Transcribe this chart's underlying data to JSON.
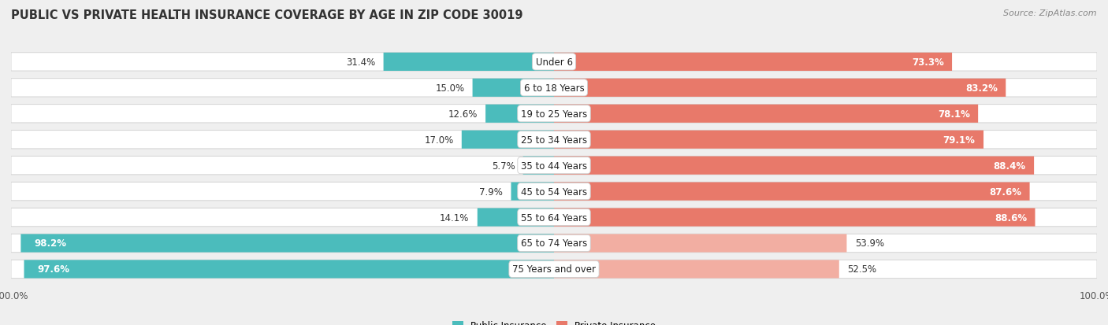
{
  "title": "PUBLIC VS PRIVATE HEALTH INSURANCE COVERAGE BY AGE IN ZIP CODE 30019",
  "source": "Source: ZipAtlas.com",
  "categories": [
    "Under 6",
    "6 to 18 Years",
    "19 to 25 Years",
    "25 to 34 Years",
    "35 to 44 Years",
    "45 to 54 Years",
    "55 to 64 Years",
    "65 to 74 Years",
    "75 Years and over"
  ],
  "public_values": [
    31.4,
    15.0,
    12.6,
    17.0,
    5.7,
    7.9,
    14.1,
    98.2,
    97.6
  ],
  "private_values": [
    73.3,
    83.2,
    78.1,
    79.1,
    88.4,
    87.6,
    88.6,
    53.9,
    52.5
  ],
  "public_color": "#4bbcbc",
  "private_color_high": "#e8796a",
  "private_color_low": "#f2aea2",
  "row_bg_color": "#ffffff",
  "row_border_color": "#d8d8d8",
  "background_color": "#efefef",
  "bar_height": 0.68,
  "title_fontsize": 10.5,
  "val_fontsize": 8.5,
  "cat_fontsize": 8.5,
  "axis_label_fontsize": 8.5,
  "source_fontsize": 8,
  "legend_fontsize": 8.5,
  "xlim_left": -100,
  "xlim_right": 100,
  "legend_label_public": "Public Insurance",
  "legend_label_private": "Private Insurance",
  "center_label_bg": "#ffffff",
  "center_label_border": "#cccccc"
}
